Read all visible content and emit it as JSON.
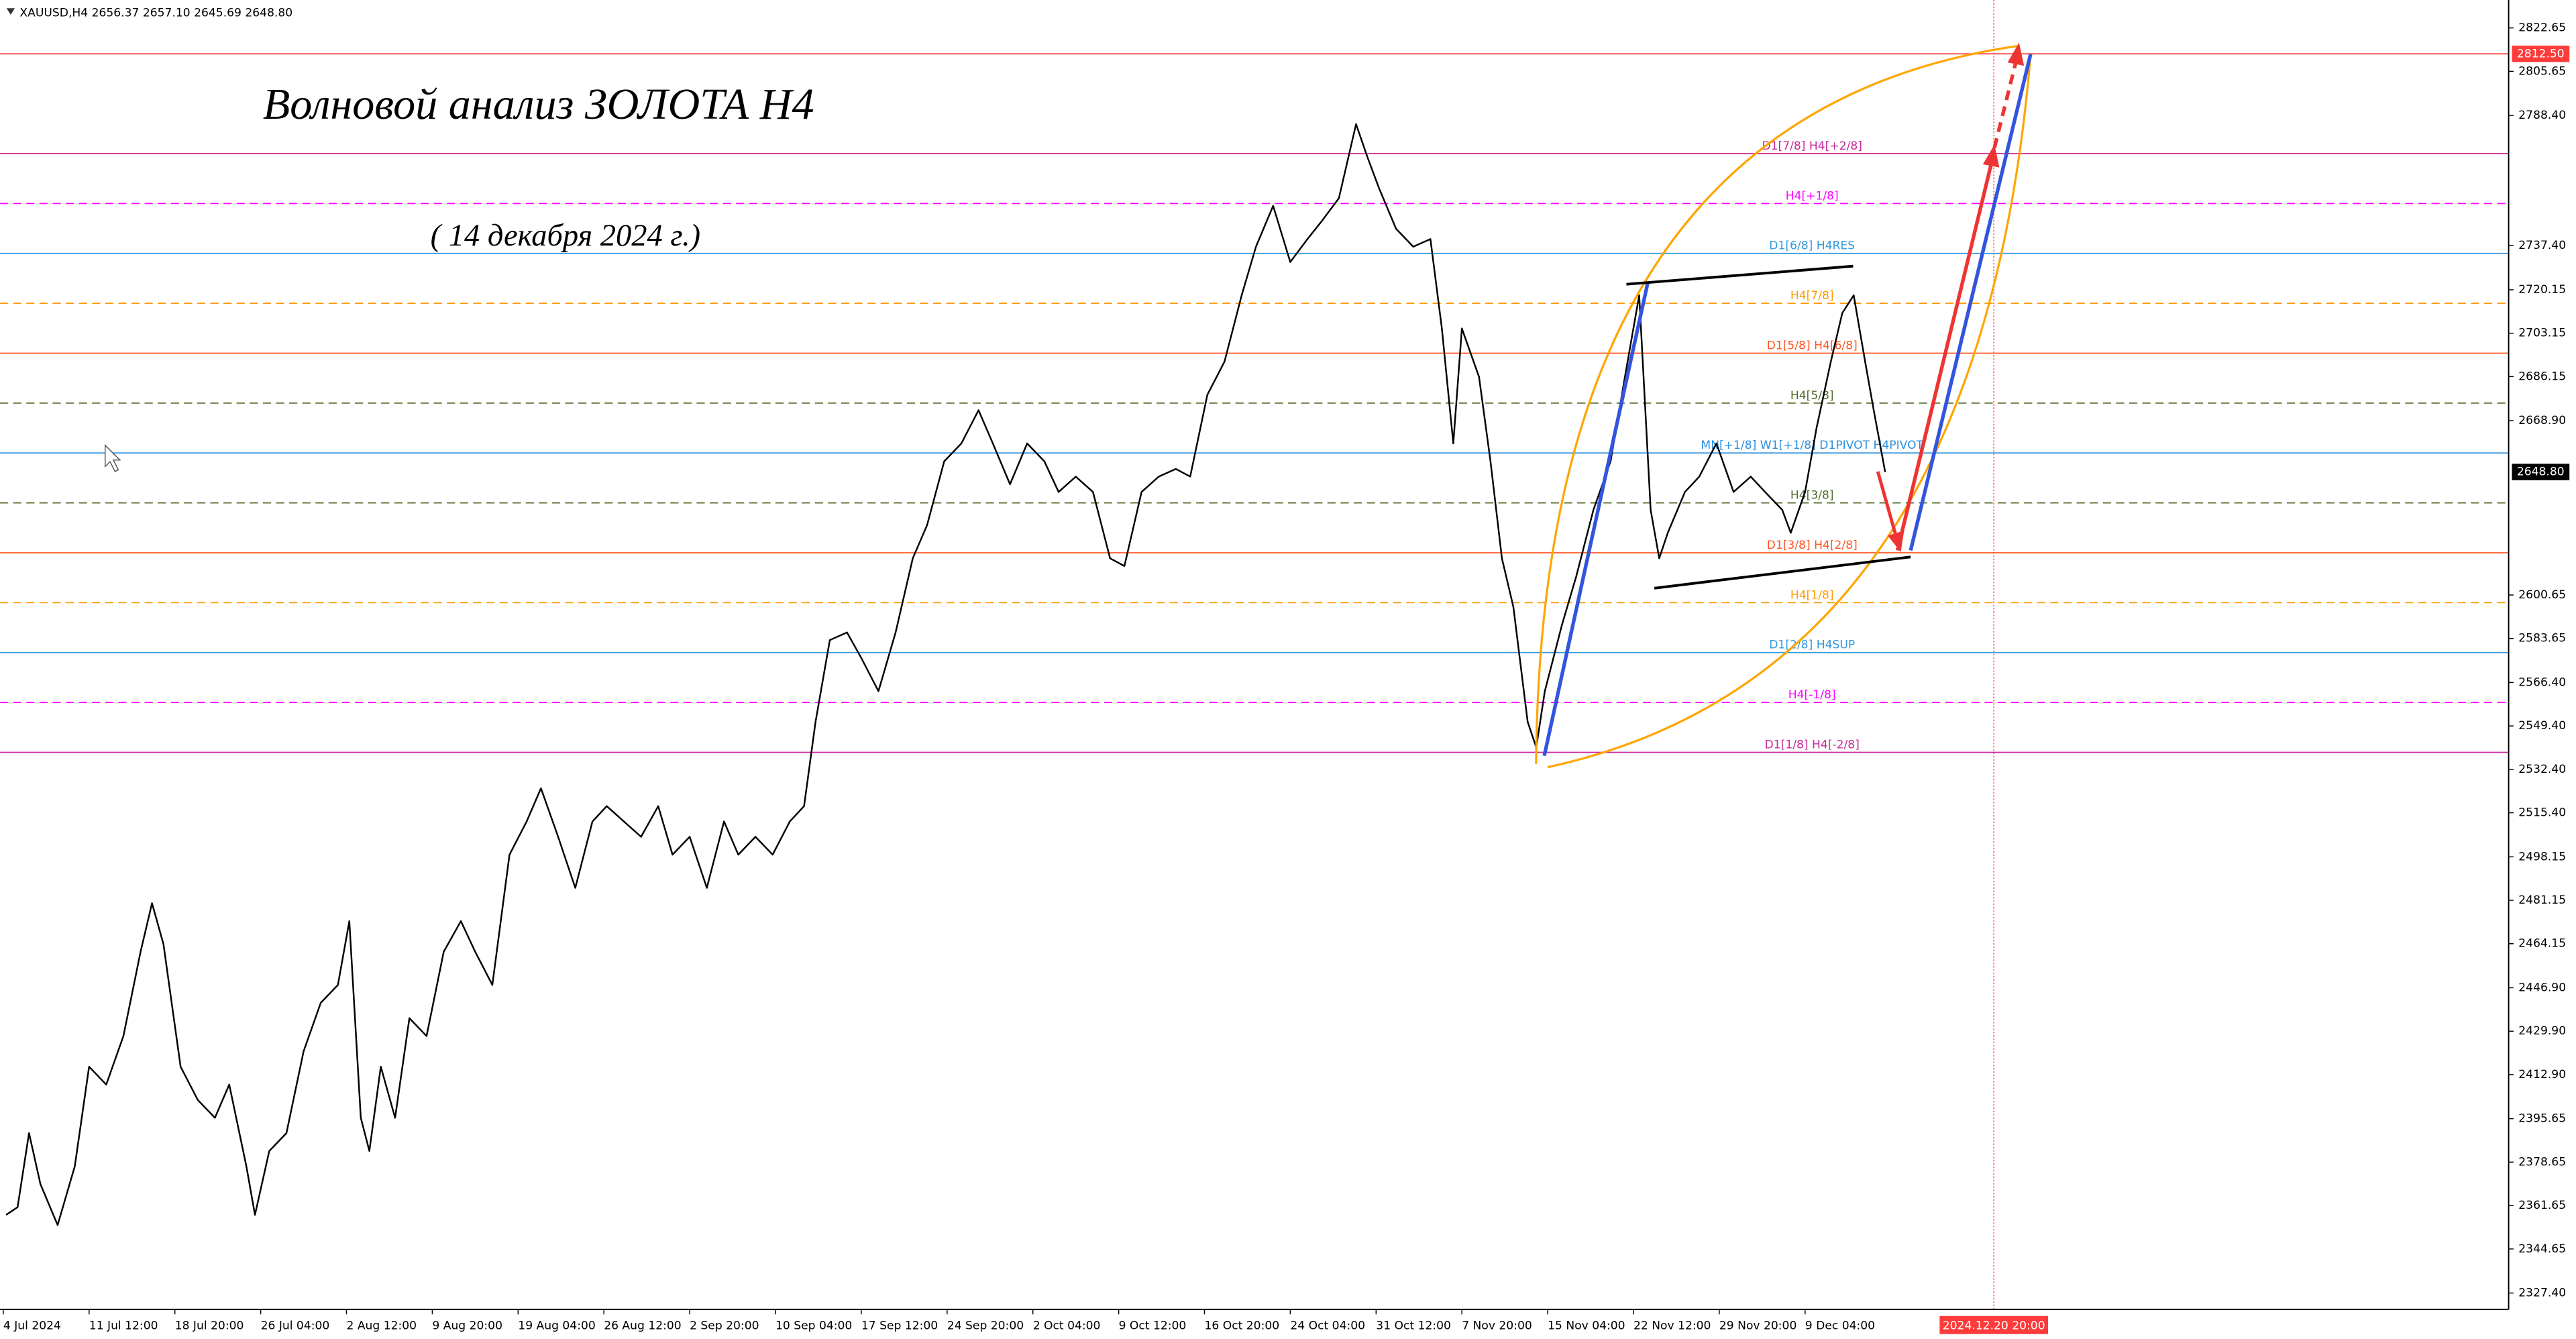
{
  "chart_data": {
    "type": "line",
    "header": "XAUUSD,H4  2656.37 2657.10 2645.69 2648.80",
    "title": "Волновой анализ ЗОЛОТА H4",
    "subtitle": "( 14 декабря 2024 г.)",
    "color": "#000000",
    "x": [
      1,
      5,
      9,
      13,
      19,
      25,
      30,
      36,
      42,
      48,
      52,
      56,
      62,
      68,
      74,
      79,
      85,
      88,
      93,
      99,
      105,
      111,
      117,
      121,
      125,
      128,
      132,
      137,
      142,
      148,
      154,
      160,
      165,
      171,
      177,
      183,
      188,
      194,
      200,
      206,
      211,
      217,
      223,
      229,
      234,
      240,
      246,
      252,
      257,
      263,
      269,
      275,
      280,
      284,
      289,
      295,
      300,
      306,
      312,
      318,
      323,
      329,
      335,
      341,
      346,
      352,
      358,
      364,
      369,
      375,
      381,
      387,
      392,
      398,
      404,
      410,
      415,
      421,
      427,
      433,
      438,
      444,
      450,
      456,
      461,
      467,
      473,
      477,
      481,
      487,
      493,
      499,
      503,
      507,
      510,
      516,
      520,
      524,
      528,
      533,
      536,
      539,
      545,
      550,
      556,
      562,
      567,
      572,
      576,
      579,
      582,
      588,
      593,
      599,
      605,
      611,
      616,
      622,
      625,
      630,
      634,
      639,
      643,
      647,
      651,
      654,
      658
    ],
    "values": [
      2358,
      2361,
      2390,
      2370,
      2354,
      2377,
      2416,
      2409,
      2428,
      2461,
      2480,
      2464,
      2416,
      2403,
      2396,
      2409,
      2377,
      2358,
      2383,
      2390,
      2422,
      2441,
      2448,
      2473,
      2396,
      2383,
      2416,
      2396,
      2435,
      2428,
      2461,
      2473,
      2461,
      2448,
      2499,
      2512,
      2525,
      2506,
      2486,
      2512,
      2518,
      2512,
      2506,
      2518,
      2499,
      2506,
      2486,
      2512,
      2499,
      2506,
      2499,
      2512,
      2518,
      2551,
      2583,
      2586,
      2576,
      2563,
      2586,
      2615,
      2628,
      2653,
      2660,
      2673,
      2660,
      2644,
      2660,
      2653,
      2641,
      2647,
      2641,
      2615,
      2612,
      2641,
      2647,
      2650,
      2647,
      2679,
      2692,
      2718,
      2737,
      2753,
      2731,
      2740,
      2747,
      2756,
      2785,
      2772,
      2760,
      2744,
      2737,
      2740,
      2705,
      2660,
      2705,
      2686,
      2653,
      2615,
      2596,
      2551,
      2541,
      2563,
      2589,
      2608,
      2634,
      2653,
      2686,
      2718,
      2634,
      2615,
      2625,
      2641,
      2647,
      2660,
      2641,
      2647,
      2641,
      2634,
      2625,
      2641,
      2666,
      2692,
      2711,
      2718,
      2692,
      2673,
      2648.8
    ],
    "xlim": [
      0,
      876
    ],
    "xticks": [
      {
        "value": 0,
        "label": "4 Jul 2024"
      },
      {
        "value": 30,
        "label": "11 Jul 12:00"
      },
      {
        "value": 60,
        "label": "18 Jul 20:00"
      },
      {
        "value": 90,
        "label": "26 Jul 04:00"
      },
      {
        "value": 120,
        "label": "2 Aug 12:00"
      },
      {
        "value": 150,
        "label": "9 Aug 20:00"
      },
      {
        "value": 180,
        "label": "19 Aug 04:00"
      },
      {
        "value": 210,
        "label": "26 Aug 12:00"
      },
      {
        "value": 240,
        "label": "2 Sep 20:00"
      },
      {
        "value": 270,
        "label": "10 Sep 04:00"
      },
      {
        "value": 300,
        "label": "17 Sep 12:00"
      },
      {
        "value": 330,
        "label": "24 Sep 20:00"
      },
      {
        "value": 360,
        "label": "2 Oct 04:00"
      },
      {
        "value": 390,
        "label": "9 Oct 12:00"
      },
      {
        "value": 420,
        "label": "16 Oct 20:00"
      },
      {
        "value": 450,
        "label": "24 Oct 04:00"
      },
      {
        "value": 480,
        "label": "31 Oct 12:00"
      },
      {
        "value": 510,
        "label": "7 Nov 20:00"
      },
      {
        "value": 540,
        "label": "15 Nov 04:00"
      },
      {
        "value": 570,
        "label": "22 Nov 12:00"
      },
      {
        "value": 600,
        "label": "29 Nov 20:00"
      },
      {
        "value": 630,
        "label": "9 Dec 04:00"
      }
    ],
    "cursor_time": {
      "value": 696,
      "label": "2024.12.20 20:00"
    },
    "ylim": [
      2320.98,
      2833.58
    ],
    "yticks": [
      2822.65,
      2805.65,
      {
        "value": 2788.4,
        "label": "2788.40"
      },
      {
        "value": 2737.4,
        "label": "2737.40"
      },
      2720.15,
      2703.15,
      2686.15,
      {
        "value": 2668.9,
        "label": "2668.90"
      },
      2600.65,
      2583.65,
      {
        "value": 2566.4,
        "label": "2566.40"
      },
      {
        "value": 2549.4,
        "label": "2549.40"
      },
      {
        "value": 2532.4,
        "label": "2532.40"
      },
      {
        "value": 2515.4,
        "label": "2515.40"
      },
      2498.15,
      2481.15,
      2464.15,
      {
        "value": 2446.9,
        "label": "2446.90"
      },
      {
        "value": 2429.9,
        "label": "2429.90"
      },
      {
        "value": 2412.9,
        "label": "2412.90"
      },
      2395.65,
      2378.65,
      2361.65,
      2344.65,
      {
        "value": 2327.4,
        "label": "2327.40"
      }
    ],
    "levels": [
      {
        "value": 2812.5,
        "value_label": "2812.50",
        "color": "#ff3b3b",
        "dashed": false
      },
      {
        "value": 2773.44,
        "label": "D1[7/8] H4[+2/8]",
        "color": "#c8289a",
        "dashed": false
      },
      {
        "value": 2753.91,
        "label": "H4[+1/8]",
        "color": "#ff00ff",
        "dashed": true
      },
      {
        "value": 2734.38,
        "label": "D1[6/8] H4RES",
        "color": "#3399dd",
        "dashed": false
      },
      {
        "value": 2714.84,
        "label": "H4[7/8]",
        "color": "#ff9900",
        "dashed": true
      },
      {
        "value": 2695.31,
        "label": "D1[5/8] H4[6/8]",
        "color": "#ff5522",
        "dashed": false
      },
      {
        "value": 2675.78,
        "label": "H4[5/8]",
        "color": "#556b2f",
        "dashed": true
      },
      {
        "value": 2656.25,
        "label": "MN[+1/8] W1[+1/8] D1PIVOT H4PIVOT",
        "color": "#2a8fe0",
        "dashed": false
      },
      {
        "value": 2636.72,
        "label": "H4[3/8]",
        "color": "#556b2f",
        "dashed": true
      },
      {
        "value": 2617.19,
        "label": "D1[3/8] H4[2/8]",
        "color": "#ff5522",
        "dashed": false
      },
      {
        "value": 2597.66,
        "label": "H4[1/8]",
        "color": "#ff9900",
        "dashed": true
      },
      {
        "value": 2578.12,
        "label": "D1[2/8] H4SUP",
        "color": "#3399dd",
        "dashed": false
      },
      {
        "value": 2558.59,
        "label": "H4[-1/8]",
        "color": "#ff00ff",
        "dashed": true
      },
      {
        "value": 2539.06,
        "label": "D1[1/8] H4[-2/8]",
        "color": "#c8289a",
        "dashed": false
      }
    ],
    "last_price": {
      "value": 2648.8,
      "value_label": "2648.80"
    }
  }
}
